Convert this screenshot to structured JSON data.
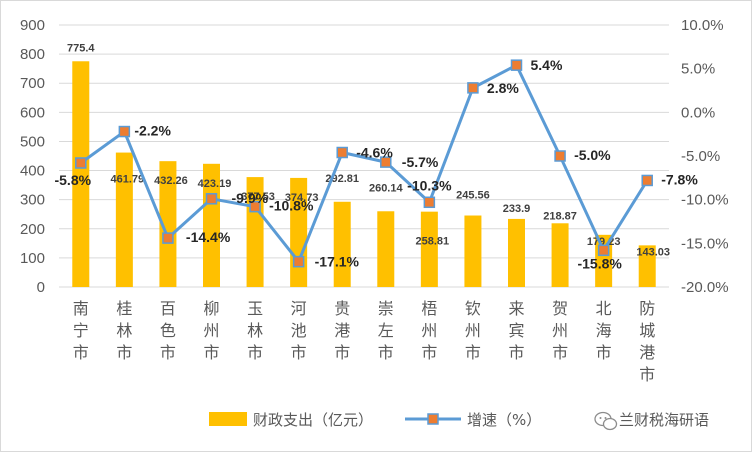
{
  "chart_data": {
    "type": "bar+line",
    "categories": [
      "南宁市",
      "桂林市",
      "百色市",
      "柳州市",
      "玉林市",
      "河池市",
      "贵港市",
      "崇左市",
      "梧州市",
      "钦州市",
      "来宾市",
      "贺州市",
      "北海市",
      "防城港市"
    ],
    "series": [
      {
        "name": "财政支出（亿元）",
        "type": "bar",
        "axis": "left",
        "color": "#FFC000",
        "values": [
          775.4,
          461.79,
          432.26,
          423.19,
          377.53,
          374.73,
          292.81,
          260.14,
          258.81,
          245.56,
          233.9,
          218.87,
          179.23,
          143.03
        ],
        "labels": [
          "775.4",
          "461.79",
          "432.26",
          "423.19",
          "377.53",
          "374.73",
          "292.81",
          "260.14",
          "258.81",
          "245.56",
          "233.9",
          "218.87",
          "179.23",
          "143.03"
        ]
      },
      {
        "name": "增速（%）",
        "type": "line",
        "axis": "right",
        "color": "#5B9BD5",
        "marker_color": "#ED7D31",
        "values": [
          -5.8,
          -2.2,
          -14.4,
          -9.9,
          -10.8,
          -17.1,
          -4.6,
          -5.7,
          -10.3,
          2.8,
          5.4,
          -5.0,
          -15.8,
          -7.8
        ],
        "labels": [
          "-5.8%",
          "-2.2%",
          "-14.4%",
          "-9.9%",
          "-10.8%",
          "-17.1%",
          "-4.6%",
          "-5.7%",
          "-10.3%",
          "2.8%",
          "5.4%",
          "-5.0%",
          "-15.8%",
          "-7.8%"
        ]
      }
    ],
    "y_left": {
      "min": 0,
      "max": 900,
      "step": 100,
      "tick_labels": [
        "0",
        "100",
        "200",
        "300",
        "400",
        "500",
        "600",
        "700",
        "800",
        "900"
      ]
    },
    "y_right": {
      "min": -20,
      "max": 10,
      "step": 5,
      "tick_labels": [
        "-20.0%",
        "-15.0%",
        "-10.0%",
        "-5.0%",
        "0.0%",
        "5.0%",
        "10.0%"
      ]
    },
    "highlight_color": "#FF0000",
    "legend": {
      "position": "bottom"
    },
    "watermark": "兰财税海研语"
  }
}
